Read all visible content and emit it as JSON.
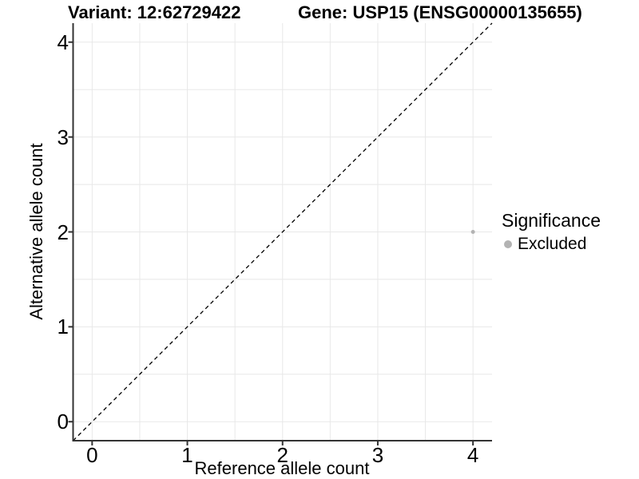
{
  "chart_data": {
    "type": "scatter",
    "titles": {
      "variant": "Variant: 12:62729422",
      "gene": "Gene: USP15 (ENSG00000135655)"
    },
    "xlabel": "Reference allele count",
    "ylabel": "Alternative allele count",
    "xlim": [
      -0.2,
      4.2
    ],
    "ylim": [
      -0.2,
      4.2
    ],
    "x_ticks": [
      0,
      1,
      2,
      3,
      4
    ],
    "y_ticks": [
      0,
      1,
      2,
      3,
      4
    ],
    "grid": {
      "visible": true,
      "interval": 0.5,
      "color": "#e8e8e8"
    },
    "points": [
      {
        "x": 4,
        "y": 2,
        "significance": "Excluded",
        "color": "#b3b3b3",
        "radius": 2.5
      }
    ],
    "identity_line": {
      "from_xy": [
        -0.2,
        -0.2
      ],
      "to_xy": [
        4.2,
        4.2
      ],
      "style": "dashed",
      "color": "#000000"
    },
    "legend": {
      "title": "Significance",
      "position": "right",
      "entries": [
        {
          "label": "Excluded",
          "marker": "circle",
          "color": "#b3b3b3"
        }
      ]
    },
    "colors": {
      "axis": "#333333",
      "text": "#000000",
      "background": "#ffffff"
    }
  }
}
